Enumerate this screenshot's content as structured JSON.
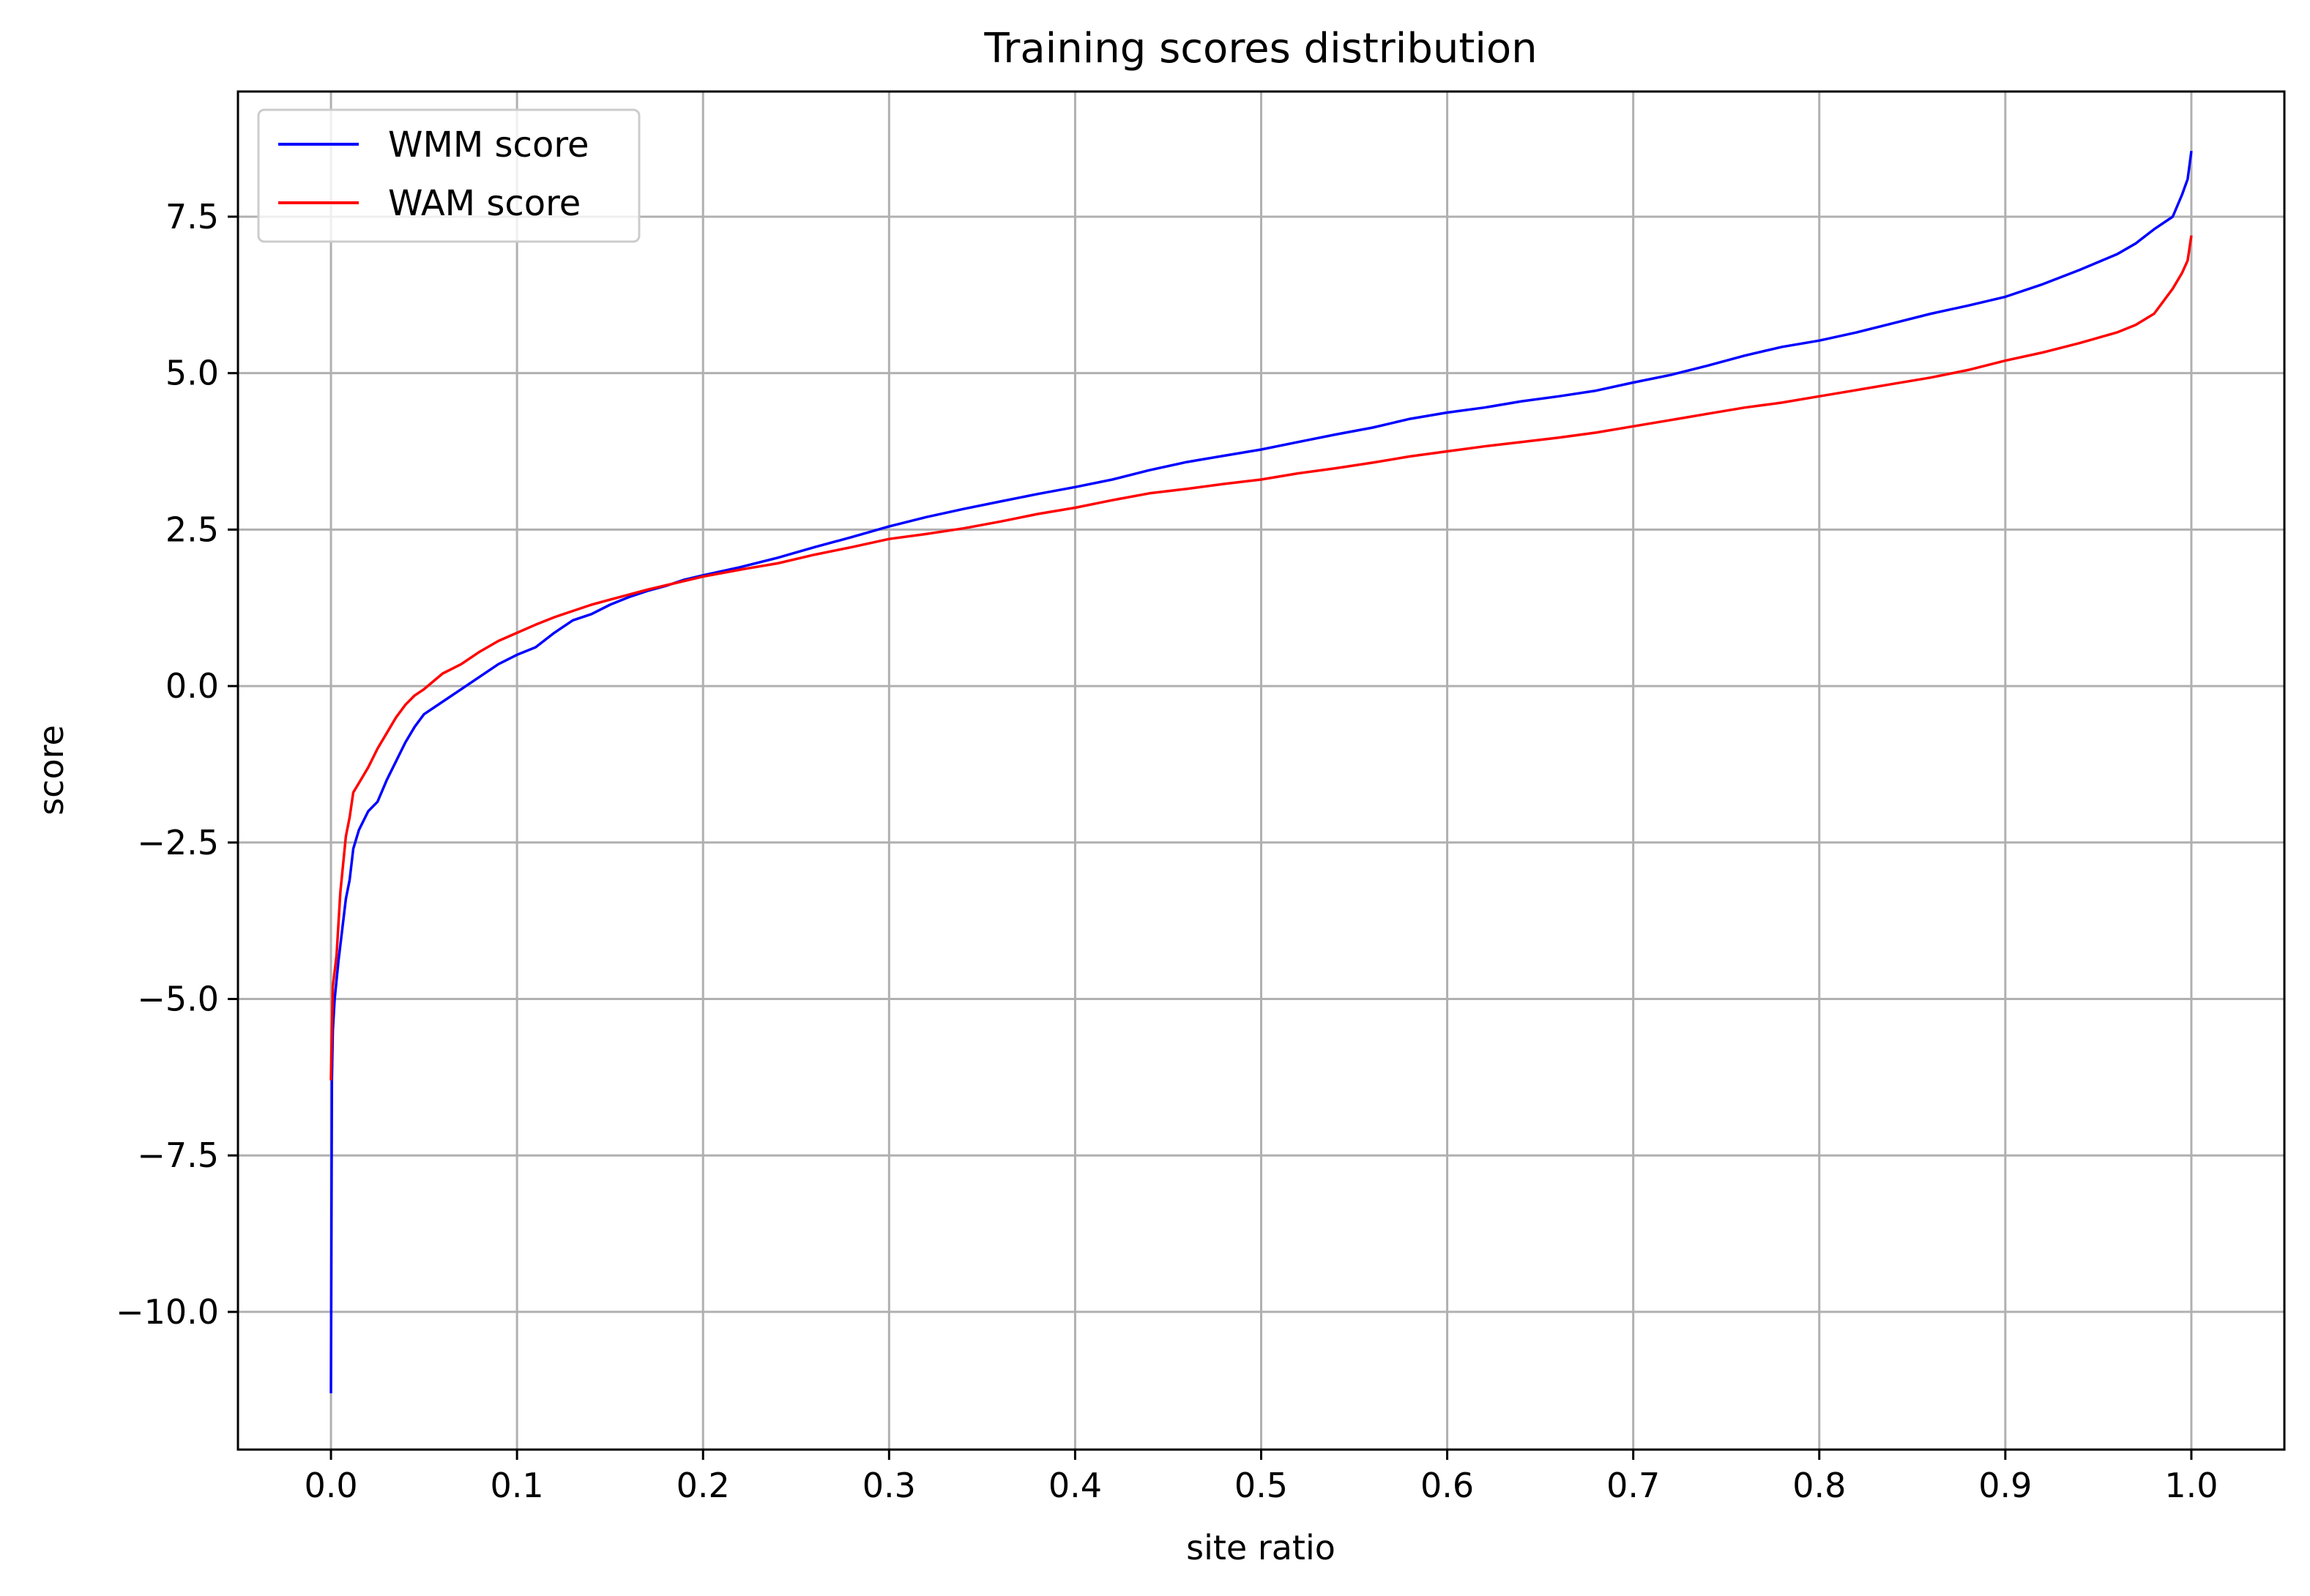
{
  "chart_data": {
    "type": "line",
    "title": "Training scores distribution",
    "xlabel": "site ratio",
    "ylabel": "score",
    "xlim": [
      -0.05,
      1.05
    ],
    "ylim": [
      -12.2,
      9.5
    ],
    "grid": true,
    "legend_position": "top-left",
    "x_ticks": [
      {
        "value": 0.0,
        "label": "0.0"
      },
      {
        "value": 0.1,
        "label": "0.1"
      },
      {
        "value": 0.2,
        "label": "0.2"
      },
      {
        "value": 0.3,
        "label": "0.3"
      },
      {
        "value": 0.4,
        "label": "0.4"
      },
      {
        "value": 0.5,
        "label": "0.5"
      },
      {
        "value": 0.6,
        "label": "0.6"
      },
      {
        "value": 0.7,
        "label": "0.7"
      },
      {
        "value": 0.8,
        "label": "0.8"
      },
      {
        "value": 0.9,
        "label": "0.9"
      },
      {
        "value": 1.0,
        "label": "1.0"
      }
    ],
    "y_ticks": [
      {
        "value": -10.0,
        "label": "−10.0"
      },
      {
        "value": -7.5,
        "label": "−7.5"
      },
      {
        "value": -5.0,
        "label": "−5.0"
      },
      {
        "value": -2.5,
        "label": "−2.5"
      },
      {
        "value": 0.0,
        "label": "0.0"
      },
      {
        "value": 2.5,
        "label": "2.5"
      },
      {
        "value": 5.0,
        "label": "5.0"
      },
      {
        "value": 7.5,
        "label": "7.5"
      }
    ],
    "series": [
      {
        "name": "WMM score",
        "color": "#0000ff",
        "points": [
          [
            0.0,
            -11.3
          ],
          [
            0.0005,
            -6.3
          ],
          [
            0.001,
            -5.5
          ],
          [
            0.002,
            -5.0
          ],
          [
            0.004,
            -4.4
          ],
          [
            0.006,
            -3.9
          ],
          [
            0.008,
            -3.4
          ],
          [
            0.01,
            -3.1
          ],
          [
            0.012,
            -2.6
          ],
          [
            0.015,
            -2.3
          ],
          [
            0.02,
            -2.0
          ],
          [
            0.025,
            -1.85
          ],
          [
            0.03,
            -1.5
          ],
          [
            0.035,
            -1.2
          ],
          [
            0.04,
            -0.9
          ],
          [
            0.045,
            -0.65
          ],
          [
            0.05,
            -0.45
          ],
          [
            0.06,
            -0.25
          ],
          [
            0.07,
            -0.05
          ],
          [
            0.08,
            0.15
          ],
          [
            0.09,
            0.35
          ],
          [
            0.1,
            0.5
          ],
          [
            0.11,
            0.62
          ],
          [
            0.12,
            0.85
          ],
          [
            0.13,
            1.05
          ],
          [
            0.14,
            1.15
          ],
          [
            0.15,
            1.3
          ],
          [
            0.16,
            1.42
          ],
          [
            0.17,
            1.52
          ],
          [
            0.18,
            1.6
          ],
          [
            0.19,
            1.7
          ],
          [
            0.2,
            1.77
          ],
          [
            0.22,
            1.9
          ],
          [
            0.24,
            2.05
          ],
          [
            0.26,
            2.22
          ],
          [
            0.28,
            2.38
          ],
          [
            0.3,
            2.55
          ],
          [
            0.32,
            2.7
          ],
          [
            0.34,
            2.83
          ],
          [
            0.36,
            2.95
          ],
          [
            0.38,
            3.07
          ],
          [
            0.4,
            3.18
          ],
          [
            0.42,
            3.3
          ],
          [
            0.44,
            3.45
          ],
          [
            0.46,
            3.58
          ],
          [
            0.48,
            3.68
          ],
          [
            0.5,
            3.78
          ],
          [
            0.52,
            3.9
          ],
          [
            0.54,
            4.02
          ],
          [
            0.56,
            4.13
          ],
          [
            0.58,
            4.27
          ],
          [
            0.6,
            4.37
          ],
          [
            0.62,
            4.45
          ],
          [
            0.64,
            4.55
          ],
          [
            0.66,
            4.63
          ],
          [
            0.68,
            4.72
          ],
          [
            0.7,
            4.85
          ],
          [
            0.72,
            4.97
          ],
          [
            0.74,
            5.12
          ],
          [
            0.76,
            5.28
          ],
          [
            0.78,
            5.42
          ],
          [
            0.8,
            5.52
          ],
          [
            0.82,
            5.65
          ],
          [
            0.84,
            5.8
          ],
          [
            0.86,
            5.95
          ],
          [
            0.88,
            6.08
          ],
          [
            0.9,
            6.22
          ],
          [
            0.92,
            6.42
          ],
          [
            0.94,
            6.65
          ],
          [
            0.96,
            6.9
          ],
          [
            0.97,
            7.07
          ],
          [
            0.98,
            7.3
          ],
          [
            0.99,
            7.5
          ],
          [
            0.995,
            7.85
          ],
          [
            0.998,
            8.1
          ],
          [
            1.0,
            8.55
          ]
        ]
      },
      {
        "name": "WAM score",
        "color": "#ff0000",
        "points": [
          [
            0.0,
            -6.3
          ],
          [
            0.0005,
            -5.5
          ],
          [
            0.001,
            -4.8
          ],
          [
            0.003,
            -4.3
          ],
          [
            0.005,
            -3.3
          ],
          [
            0.008,
            -2.4
          ],
          [
            0.01,
            -2.1
          ],
          [
            0.012,
            -1.7
          ],
          [
            0.015,
            -1.55
          ],
          [
            0.02,
            -1.3
          ],
          [
            0.025,
            -1.0
          ],
          [
            0.03,
            -0.75
          ],
          [
            0.035,
            -0.5
          ],
          [
            0.04,
            -0.3
          ],
          [
            0.045,
            -0.15
          ],
          [
            0.05,
            -0.05
          ],
          [
            0.06,
            0.2
          ],
          [
            0.07,
            0.35
          ],
          [
            0.08,
            0.55
          ],
          [
            0.09,
            0.72
          ],
          [
            0.1,
            0.85
          ],
          [
            0.11,
            0.98
          ],
          [
            0.12,
            1.1
          ],
          [
            0.13,
            1.2
          ],
          [
            0.14,
            1.3
          ],
          [
            0.15,
            1.38
          ],
          [
            0.16,
            1.46
          ],
          [
            0.17,
            1.54
          ],
          [
            0.18,
            1.61
          ],
          [
            0.19,
            1.68
          ],
          [
            0.2,
            1.75
          ],
          [
            0.22,
            1.86
          ],
          [
            0.24,
            1.96
          ],
          [
            0.26,
            2.1
          ],
          [
            0.28,
            2.22
          ],
          [
            0.3,
            2.35
          ],
          [
            0.32,
            2.43
          ],
          [
            0.34,
            2.52
          ],
          [
            0.36,
            2.63
          ],
          [
            0.38,
            2.75
          ],
          [
            0.4,
            2.85
          ],
          [
            0.42,
            2.97
          ],
          [
            0.44,
            3.08
          ],
          [
            0.46,
            3.15
          ],
          [
            0.48,
            3.23
          ],
          [
            0.5,
            3.3
          ],
          [
            0.52,
            3.4
          ],
          [
            0.54,
            3.48
          ],
          [
            0.56,
            3.57
          ],
          [
            0.58,
            3.67
          ],
          [
            0.6,
            3.75
          ],
          [
            0.62,
            3.83
          ],
          [
            0.64,
            3.9
          ],
          [
            0.66,
            3.97
          ],
          [
            0.68,
            4.05
          ],
          [
            0.7,
            4.15
          ],
          [
            0.72,
            4.25
          ],
          [
            0.74,
            4.35
          ],
          [
            0.76,
            4.45
          ],
          [
            0.78,
            4.53
          ],
          [
            0.8,
            4.63
          ],
          [
            0.82,
            4.73
          ],
          [
            0.84,
            4.83
          ],
          [
            0.86,
            4.93
          ],
          [
            0.88,
            5.05
          ],
          [
            0.9,
            5.2
          ],
          [
            0.92,
            5.33
          ],
          [
            0.94,
            5.48
          ],
          [
            0.96,
            5.65
          ],
          [
            0.97,
            5.77
          ],
          [
            0.98,
            5.95
          ],
          [
            0.985,
            6.15
          ],
          [
            0.99,
            6.35
          ],
          [
            0.995,
            6.6
          ],
          [
            0.998,
            6.8
          ],
          [
            1.0,
            7.2
          ]
        ]
      }
    ]
  }
}
